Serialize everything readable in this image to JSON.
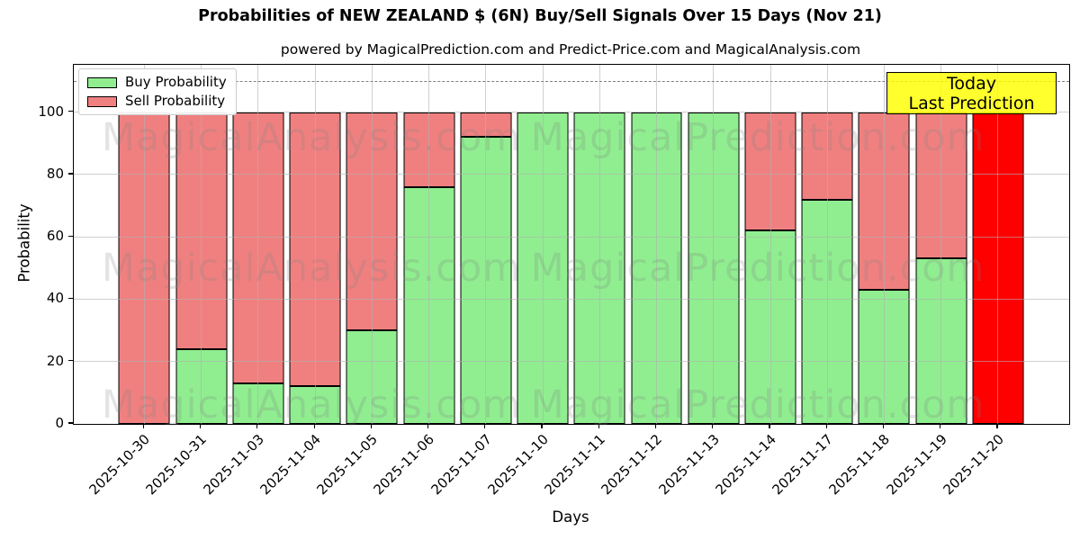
{
  "chart": {
    "title": "Probabilities of NEW ZEALAND $ (6N) Buy/Sell Signals Over 15 Days (Nov 21)",
    "subtitle": "powered by MagicalPrediction.com and Predict-Price.com and MagicalAnalysis.com",
    "ylabel": "Probability",
    "xlabel": "Days",
    "legend_items": [
      {
        "label": "Buy Probability",
        "color": "#90ee90"
      },
      {
        "label": "Sell Probability",
        "color": "#f08080"
      }
    ],
    "today_box": {
      "line1": "Today",
      "line2": "Last Prediction",
      "bg_color": "#ffff00"
    },
    "watermarks": {
      "left_text": "MagicalAnalysis.com",
      "right_text": "MagicalPrediction.com"
    },
    "colors": {
      "buy": "#90ee90",
      "sell": "#f08080",
      "today_bar": "#ff0000",
      "grid": "#b0b0b0",
      "dashed_line": "#7f7f7f",
      "bar_edge": "#000000"
    }
  },
  "chart_data": {
    "type": "bar",
    "stacked": true,
    "title": "Probabilities of NEW ZEALAND $ (6N) Buy/Sell Signals Over 15 Days (Nov 21)",
    "xlabel": "Days",
    "ylabel": "Probability",
    "categories": [
      "2025-10-30",
      "2025-10-31",
      "2025-11-03",
      "2025-11-04",
      "2025-11-05",
      "2025-11-06",
      "2025-11-07",
      "2025-11-10",
      "2025-11-11",
      "2025-11-12",
      "2025-11-13",
      "2025-11-14",
      "2025-11-17",
      "2025-11-18",
      "2025-11-19",
      "2025-11-20"
    ],
    "series": [
      {
        "name": "Buy Probability",
        "color": "#90ee90",
        "values": [
          0,
          24,
          13,
          12,
          30,
          76,
          92,
          100,
          100,
          100,
          100,
          62,
          72,
          43,
          53,
          0
        ]
      },
      {
        "name": "Sell Probability",
        "color": "#f08080",
        "values": [
          100,
          76,
          87,
          88,
          70,
          24,
          8,
          0,
          0,
          0,
          0,
          38,
          28,
          57,
          47,
          100
        ]
      }
    ],
    "highlight_bar": {
      "index": 15,
      "color": "#ff0000",
      "label": "Today / Last Prediction"
    },
    "yticks": [
      0,
      20,
      40,
      60,
      80,
      100
    ],
    "ylim": [
      0,
      115.2
    ],
    "dashed_line_y": 110,
    "grid": true,
    "legend_position": "upper left"
  }
}
